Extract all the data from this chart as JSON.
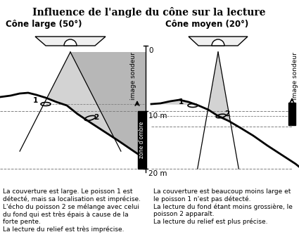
{
  "title": "Influence de l'angle du cône sur la lecture",
  "left_subtitle": "Cône large (50°)",
  "right_subtitle": "Cône moyen (20°)",
  "left_caption": "La couverture est large. Le poisson 1 est\ndétecté, mais sa localisation est imprécise.\nL'écho du poisson 2 se mélange avec celui\ndu fond qui est très épais à cause de la\nforte pente.\nLa lecture du relief est très imprécise.",
  "right_caption": "La couverture est beaucoup moins large et\nle poisson 1 n'est pas détecté.\nLa lecture du fond étant moins grossière, le\npoisson 2 apparaît.\nLa lecture du relief est plus précise.",
  "depth_label_0": "0",
  "depth_label_10": "10 m",
  "depth_label_20": "20 m",
  "image_sondeur": "image sondeur",
  "zone_ombre": "zone d'ombre",
  "bg_color": "#ffffff",
  "cone_fill": "#cccccc",
  "shadow_fill": "#bbbbbb",
  "text_color": "#000000"
}
